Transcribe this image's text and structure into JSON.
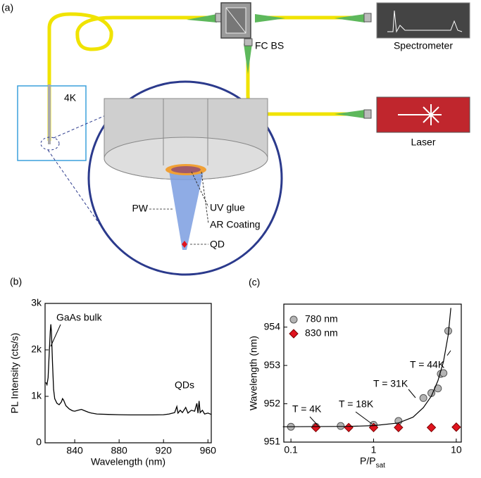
{
  "diagram": {
    "label": "(a)",
    "beam_splitter": "FC BS",
    "spectrometer": "Spectrometer",
    "laser": "Laser",
    "cryostat": "4K",
    "waveguide": "PW",
    "glue": "UV glue",
    "coating": "AR Coating",
    "emitter": "QD"
  },
  "chart_data": [
    {
      "type": "line",
      "label": "(b)",
      "xlabel": "Wavelength (nm)",
      "ylabel": "PL Intensity (cts/s)",
      "annotations": [
        "GaAs bulk",
        "QDs"
      ],
      "color": "#000000",
      "x": [
        814,
        815,
        816,
        817,
        818,
        818.5,
        819,
        820,
        821,
        822,
        824,
        826,
        828,
        829,
        830,
        832,
        835,
        838,
        840,
        843,
        846,
        849,
        852,
        855,
        860,
        870,
        880,
        890,
        900,
        910,
        920,
        925,
        930,
        932,
        933,
        935,
        937,
        940,
        942,
        945,
        948,
        950,
        951,
        952,
        953,
        955,
        957,
        960,
        963
      ],
      "values": [
        1300,
        1250,
        1400,
        1900,
        2400,
        2550,
        2400,
        1700,
        1150,
        950,
        850,
        820,
        880,
        950,
        920,
        800,
        730,
        690,
        680,
        700,
        720,
        690,
        660,
        640,
        620,
        610,
        605,
        600,
        600,
        600,
        605,
        620,
        650,
        780,
        640,
        700,
        650,
        760,
        640,
        700,
        680,
        850,
        640,
        900,
        650,
        700,
        620,
        640,
        610
      ],
      "xlim": [
        813.3,
        963
      ],
      "xticks": [
        840,
        880,
        920,
        960
      ],
      "ylim": [
        0,
        3000
      ],
      "yticks": [
        0,
        {
          "value": 1000,
          "label": "1k"
        },
        {
          "value": 2000,
          "label": "2k"
        },
        {
          "value": 3000,
          "label": "3k"
        }
      ]
    },
    {
      "type": "scatter",
      "label": "(c)",
      "xlabel": "P/P",
      "xlabel_sub": "sat",
      "ylabel": "Wavelength (nm)",
      "log_x": true,
      "legend": "upper left",
      "annotations": [
        "T = 4K",
        "T = 18K",
        "T = 31K",
        "T = 44K"
      ],
      "series": [
        {
          "name": "780 nm",
          "color": "#b4b4b4",
          "marker": "circle",
          "x": [
            0.1,
            0.2,
            0.4,
            1,
            2,
            4,
            5,
            6,
            6.5,
            7,
            8
          ],
          "values": [
            951.4,
            951.4,
            951.42,
            951.45,
            951.55,
            952.15,
            952.28,
            952.4,
            952.78,
            952.8,
            953.9
          ]
        },
        {
          "name": "830 nm",
          "color": "#e0141e",
          "marker": "diamond",
          "x": [
            0.2,
            0.5,
            1,
            2,
            5,
            10
          ],
          "values": [
            951.38,
            951.38,
            951.38,
            951.38,
            951.38,
            951.39
          ]
        },
        {
          "color": "#000000",
          "marker": "line",
          "x": [
            0.08,
            0.5,
            1,
            2,
            3,
            4,
            5,
            6,
            7,
            8,
            8.6
          ],
          "values": [
            951.4,
            951.41,
            951.43,
            951.5,
            951.65,
            951.9,
            952.2,
            952.6,
            953.1,
            953.8,
            954.5
          ]
        }
      ],
      "xlim": [
        0.082,
        11.5
      ],
      "xticks": [
        0.1,
        1,
        10
      ],
      "ylim": [
        951,
        954.6
      ],
      "yticks": [
        951,
        952,
        953,
        954
      ]
    }
  ]
}
